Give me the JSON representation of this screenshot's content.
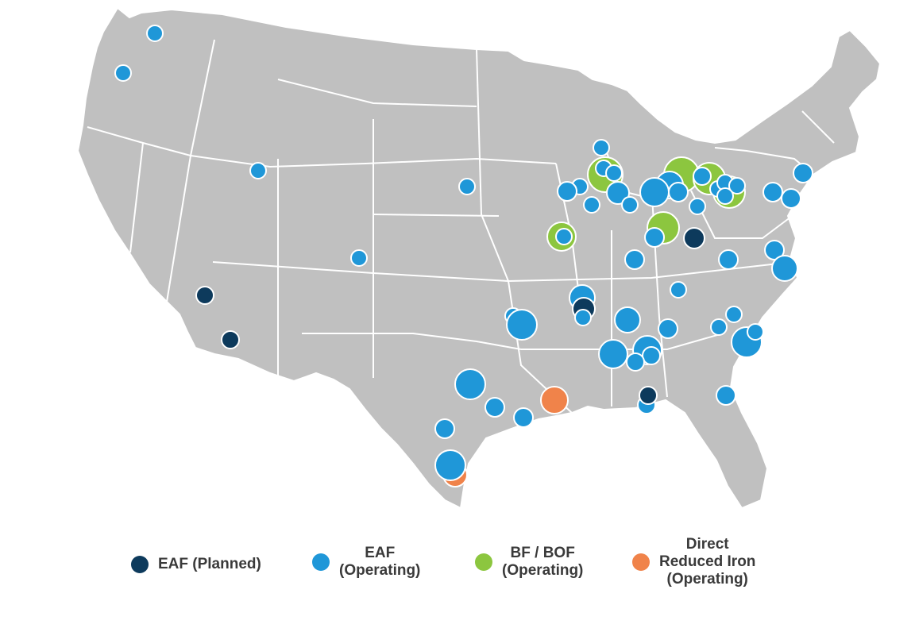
{
  "colors": {
    "eaf_planned": "#0d3a5c",
    "eaf_operating": "#1f97d8",
    "bf_bof_operating": "#8cc63f",
    "dri_operating": "#f0834a",
    "land": "#c0c0c0",
    "border": "#ffffff"
  },
  "legend": {
    "eaf_planned": "EAF (Planned)",
    "eaf_operating": "EAF\n(Operating)",
    "bf_bof": "BF / BOF\n(Operating)",
    "dri": "Direct\nReduced Iron\n(Operating)"
  },
  "chart_data": {
    "type": "scatter",
    "subject": "United States map",
    "series": [
      {
        "name": "EAF (Planned)",
        "color": "#0d3a5c"
      },
      {
        "name": "EAF (Operating)",
        "color": "#1f97d8"
      },
      {
        "name": "BF / BOF (Operating)",
        "color": "#8cc63f"
      },
      {
        "name": "Direct Reduced Iron (Operating)",
        "color": "#f0834a"
      }
    ]
  }
}
